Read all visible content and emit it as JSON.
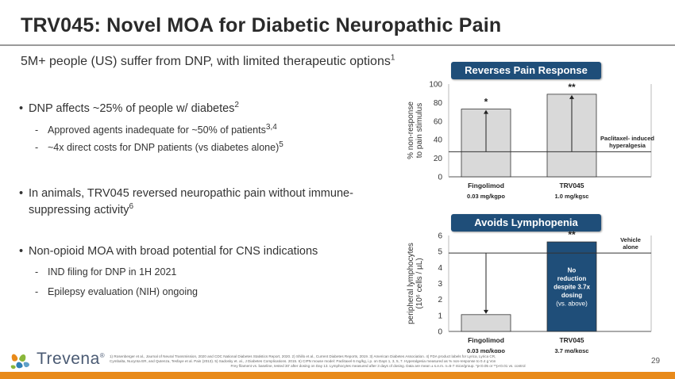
{
  "header": {
    "title": "TRV045: Novel MOA for Diabetic Neuropathic Pain",
    "subtitle": "5M+ people (US) suffer from DNP, with limited therapeutic options",
    "subtitle_ref": "1"
  },
  "bullets": [
    {
      "text": "DNP affects ~25% of people w/ diabetes",
      "ref": "2",
      "subs": [
        {
          "text": "Approved agents inadequate for ~50% of patients",
          "ref": "3,4"
        },
        {
          "text": "~4x direct costs for DNP patients (vs diabetes alone)",
          "ref": "5"
        }
      ]
    },
    {
      "text1": "In animals, TRV045 reversed neuropathic pain without immune-",
      "text2": "suppressing activity",
      "ref": "6"
    },
    {
      "text": "Non-opioid MOA with broad potential for CNS indications",
      "subs": [
        {
          "text": "IND filing for DNP in 1H 2021"
        },
        {
          "text": "Epilepsy evaluation (NIH) ongoing"
        }
      ]
    }
  ],
  "colors": {
    "header_bg": "#1f4e79",
    "bar_light": "#d9d9d9",
    "bar_dark": "#1f4e79",
    "accent": "#e88a1a"
  },
  "chart_data": [
    {
      "type": "bar",
      "title": "Reverses Pain Response",
      "ylabel_line1": "% non-response",
      "ylabel_line2": "to pain stimulus",
      "ylim": [
        0,
        100
      ],
      "yticks": [
        0,
        20,
        40,
        60,
        80,
        100
      ],
      "categories": [
        "Fingolimod",
        "TRV045"
      ],
      "doses": [
        "0.03 mg/kgpo",
        "1.0 mg/kgsc"
      ],
      "values": [
        73,
        89
      ],
      "significance": [
        "*",
        "**"
      ],
      "baseline": {
        "value": 27,
        "label_line1": "Paclitaxel- induced",
        "label_line2": "hyperalgesia"
      }
    },
    {
      "type": "bar",
      "title": "Avoids Lymphopenia",
      "ylabel_line1": "peripheral lymphocytes",
      "ylabel_line2": "(10⁶ cells / µL)",
      "ylim": [
        0,
        6
      ],
      "yticks": [
        0,
        1,
        2,
        3,
        4,
        5,
        6
      ],
      "categories": [
        "Fingolimod",
        "TRV045"
      ],
      "doses": [
        "0.03 mg/kgpo",
        "3.7 mg/kgsc"
      ],
      "values": [
        1.05,
        5.6
      ],
      "significance": [
        "",
        "**"
      ],
      "baseline": {
        "value": 4.9,
        "label_line1": "Vehicle",
        "label_line2": "alone"
      },
      "bar_note": {
        "line1": "No",
        "line2": "reduction",
        "line3": "despite 3.7x",
        "line4": "dosing",
        "line5": "(vs. above)"
      }
    }
  ],
  "footnote": {
    "line1": "1) Rosenberger et al., Journal of Neural Transmission, 2020 and CDC National Diabetes Statistics Report, 2020. 2) Shillo et al., Current Diabetes Reports, 2019. 3) American Diabetes Association. 4) FDA product labels for Lyrica, Lyrica CR,",
    "line2": "Cymbalta, Nucynta ER, and Qutenza, Tesfaye et al. Pain (2013). 5) Sadosky et. al., J Diabetes Complications. 2015. 6) CIPN mouse model: Paclitaxel 6 mg/kg, i.p. on Days 1, 3, 5, 7. Hyperalgesia measured as % non-response to 0.4 g Von",
    "line3": "Frey filament vs. baseline, tested 30' after dosing on Day 13. Lymphocytes measured after 3 days of dosing. Data are mean ± s.e.m. n=5-7 mice/group. *p<0.05 or **p<0.01 vs. control"
  },
  "page_number": "29",
  "logo": {
    "text": "Trevena",
    "registered": "®",
    "icon": "trevena-leaf-icon"
  }
}
